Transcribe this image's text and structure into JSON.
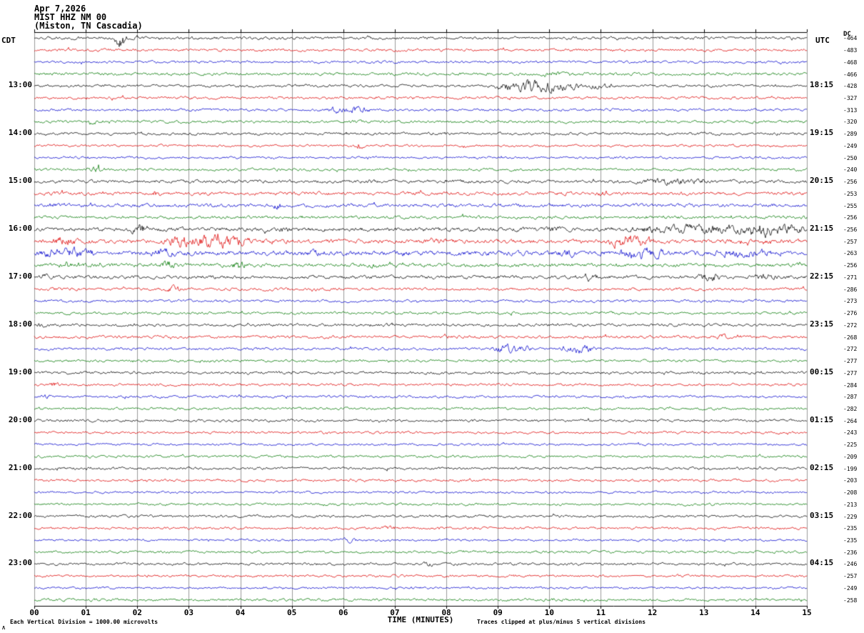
{
  "header": {
    "date": "Apr 7,2026",
    "station": "MIST HHZ NM 00",
    "location": "(Miston, TN Cascadia)"
  },
  "axes": {
    "left_tz": "CDT",
    "right_tz": "UTC",
    "dc_header": "DC",
    "xlabel": "TIME (MINUTES)",
    "x_ticks": [
      "00",
      "01",
      "02",
      "03",
      "04",
      "05",
      "06",
      "07",
      "08",
      "09",
      "10",
      "11",
      "12",
      "13",
      "14",
      "15"
    ]
  },
  "footer": {
    "left_note": "Each Vertical Division = 1000.00 microvolts",
    "right_note": "Traces clipped at plus/minus 5 vertical divisions",
    "corner_mark": "Λ"
  },
  "chart_data": {
    "type": "line",
    "subtype": "helicorder-seismogram",
    "title": "MIST HHZ NM 00 (Miston, TN Cascadia) Apr 7,2026",
    "xlabel": "TIME (MINUTES)",
    "x_range_minutes": [
      0,
      15
    ],
    "minutes_per_line": 15,
    "grid": true,
    "grid_color": "#9a9a9a",
    "trace_colors_cycle": [
      "#000000",
      "#dd0000",
      "#0000cc",
      "#007700"
    ],
    "note": "48 traces, 4 per hour, colors cycle black/red/blue/green; rows list CDT start label, UTC end label, DC offset (microvolts), base noise amplitude (px), and event bursts [start_min,end_min,amp_px]",
    "rows": [
      {
        "cdt": null,
        "utc": null,
        "dc": "-464",
        "amp": 2.4,
        "events": [
          [
            1.55,
            1.8,
            15
          ]
        ]
      },
      {
        "cdt": null,
        "utc": null,
        "dc": "-483",
        "amp": 2.2,
        "events": []
      },
      {
        "cdt": null,
        "utc": null,
        "dc": "-468",
        "amp": 2.1,
        "events": []
      },
      {
        "cdt": null,
        "utc": null,
        "dc": "-466",
        "amp": 2.4,
        "events": [
          [
            9.6,
            10.7,
            4
          ]
        ]
      },
      {
        "cdt": "13:00",
        "utc": "18:15",
        "dc": "-428",
        "amp": 2.2,
        "events": [
          [
            8.9,
            10.7,
            10
          ],
          [
            10.7,
            11.3,
            5
          ]
        ]
      },
      {
        "cdt": null,
        "utc": null,
        "dc": "-327",
        "amp": 2.1,
        "events": []
      },
      {
        "cdt": null,
        "utc": null,
        "dc": "-313",
        "amp": 2.1,
        "events": [
          [
            5.6,
            6.6,
            6
          ]
        ]
      },
      {
        "cdt": null,
        "utc": null,
        "dc": "-320",
        "amp": 2.3,
        "events": [
          [
            1.0,
            1.25,
            5
          ]
        ]
      },
      {
        "cdt": "14:00",
        "utc": "19:15",
        "dc": "-289",
        "amp": 2.2,
        "events": []
      },
      {
        "cdt": null,
        "utc": null,
        "dc": "-249",
        "amp": 2.0,
        "events": [
          [
            6.2,
            6.45,
            7
          ]
        ]
      },
      {
        "cdt": null,
        "utc": null,
        "dc": "-250",
        "amp": 1.9,
        "events": []
      },
      {
        "cdt": null,
        "utc": null,
        "dc": "-240",
        "amp": 2.1,
        "events": [
          [
            1.05,
            1.3,
            6
          ]
        ]
      },
      {
        "cdt": "15:00",
        "utc": "20:15",
        "dc": "-256",
        "amp": 2.7,
        "events": [
          [
            6.4,
            6.6,
            4
          ],
          [
            11.4,
            13.4,
            5
          ]
        ]
      },
      {
        "cdt": null,
        "utc": null,
        "dc": "-253",
        "amp": 2.8,
        "events": [
          [
            2.2,
            2.5,
            6
          ],
          [
            10.9,
            11.2,
            5
          ]
        ]
      },
      {
        "cdt": null,
        "utc": null,
        "dc": "-255",
        "amp": 2.8,
        "events": [
          [
            0.2,
            0.5,
            5
          ],
          [
            4.6,
            4.9,
            6
          ]
        ]
      },
      {
        "cdt": null,
        "utc": null,
        "dc": "-256",
        "amp": 2.5,
        "events": []
      },
      {
        "cdt": "16:00",
        "utc": "21:15",
        "dc": "-256",
        "amp": 3.2,
        "events": [
          [
            1.85,
            2.25,
            9
          ],
          [
            4.7,
            5.0,
            6
          ],
          [
            9.9,
            10.3,
            6
          ],
          [
            11.2,
            15,
            8
          ],
          [
            13.9,
            14.4,
            12
          ],
          [
            14.4,
            15,
            10
          ]
        ]
      },
      {
        "cdt": null,
        "utc": null,
        "dc": "-257",
        "amp": 3.4,
        "events": [
          [
            0.3,
            0.9,
            8
          ],
          [
            2.4,
            4.3,
            11
          ],
          [
            7.4,
            8.1,
            6
          ],
          [
            11.1,
            12.1,
            13
          ]
        ]
      },
      {
        "cdt": null,
        "utc": null,
        "dc": "-263",
        "amp": 3.8,
        "events": [
          [
            0,
            1.3,
            9
          ],
          [
            2.2,
            2.8,
            8
          ],
          [
            5.1,
            5.6,
            7
          ],
          [
            6.9,
            7.4,
            6
          ],
          [
            10.1,
            10.6,
            7
          ],
          [
            11.2,
            12.4,
            9
          ],
          [
            12.9,
            14.6,
            7
          ]
        ]
      },
      {
        "cdt": null,
        "utc": null,
        "dc": "-256",
        "amp": 3.0,
        "events": [
          [
            0.45,
            0.8,
            7
          ],
          [
            2.4,
            2.8,
            8
          ],
          [
            3.8,
            4.15,
            8
          ],
          [
            6.4,
            6.75,
            5
          ]
        ]
      },
      {
        "cdt": "17:00",
        "utc": "22:15",
        "dc": "-271",
        "amp": 2.8,
        "events": [
          [
            0.05,
            0.4,
            7
          ],
          [
            10.4,
            11.1,
            5
          ],
          [
            12.8,
            13.4,
            7
          ],
          [
            13.9,
            14.5,
            6
          ]
        ]
      },
      {
        "cdt": null,
        "utc": null,
        "dc": "-286",
        "amp": 2.3,
        "events": [
          [
            2.5,
            2.95,
            6
          ]
        ]
      },
      {
        "cdt": null,
        "utc": null,
        "dc": "-273",
        "amp": 2.2,
        "events": []
      },
      {
        "cdt": null,
        "utc": null,
        "dc": "-276",
        "amp": 2.2,
        "events": []
      },
      {
        "cdt": "18:00",
        "utc": "23:15",
        "dc": "-272",
        "amp": 2.3,
        "events": [
          [
            0,
            0.25,
            6
          ]
        ]
      },
      {
        "cdt": null,
        "utc": null,
        "dc": "-268",
        "amp": 2.3,
        "events": [
          [
            13.2,
            13.55,
            5
          ]
        ]
      },
      {
        "cdt": null,
        "utc": null,
        "dc": "-272",
        "amp": 2.2,
        "events": [
          [
            8.8,
            9.7,
            7
          ],
          [
            10.2,
            10.9,
            8
          ]
        ]
      },
      {
        "cdt": null,
        "utc": null,
        "dc": "-277",
        "amp": 2.1,
        "events": []
      },
      {
        "cdt": "19:00",
        "utc": "00:15",
        "dc": "-277",
        "amp": 2.3,
        "events": []
      },
      {
        "cdt": null,
        "utc": null,
        "dc": "-284",
        "amp": 2.1,
        "events": [
          [
            0.25,
            0.5,
            5
          ]
        ]
      },
      {
        "cdt": null,
        "utc": null,
        "dc": "-287",
        "amp": 2.0,
        "events": [
          [
            0.1,
            0.35,
            5
          ]
        ]
      },
      {
        "cdt": null,
        "utc": null,
        "dc": "-282",
        "amp": 2.0,
        "events": []
      },
      {
        "cdt": "20:00",
        "utc": "01:15",
        "dc": "-264",
        "amp": 2.1,
        "events": []
      },
      {
        "cdt": null,
        "utc": null,
        "dc": "-243",
        "amp": 2.0,
        "events": []
      },
      {
        "cdt": null,
        "utc": null,
        "dc": "-225",
        "amp": 1.8,
        "events": []
      },
      {
        "cdt": null,
        "utc": null,
        "dc": "-209",
        "amp": 2.0,
        "events": []
      },
      {
        "cdt": "21:00",
        "utc": "02:15",
        "dc": "-199",
        "amp": 2.1,
        "events": []
      },
      {
        "cdt": null,
        "utc": null,
        "dc": "-203",
        "amp": 2.0,
        "events": []
      },
      {
        "cdt": null,
        "utc": null,
        "dc": "-208",
        "amp": 1.8,
        "events": []
      },
      {
        "cdt": null,
        "utc": null,
        "dc": "-213",
        "amp": 2.0,
        "events": []
      },
      {
        "cdt": "22:00",
        "utc": "03:15",
        "dc": "-229",
        "amp": 2.1,
        "events": []
      },
      {
        "cdt": null,
        "utc": null,
        "dc": "-235",
        "amp": 2.0,
        "events": [
          [
            6.7,
            7.1,
            4
          ]
        ]
      },
      {
        "cdt": null,
        "utc": null,
        "dc": "-235",
        "amp": 1.8,
        "events": [
          [
            5.9,
            6.3,
            4
          ]
        ]
      },
      {
        "cdt": null,
        "utc": null,
        "dc": "-236",
        "amp": 2.0,
        "events": []
      },
      {
        "cdt": "23:00",
        "utc": "04:15",
        "dc": "-246",
        "amp": 2.1,
        "events": [
          [
            7.5,
            7.8,
            4
          ]
        ]
      },
      {
        "cdt": null,
        "utc": null,
        "dc": "-257",
        "amp": 2.0,
        "events": []
      },
      {
        "cdt": null,
        "utc": null,
        "dc": "-249",
        "amp": 1.8,
        "events": []
      },
      {
        "cdt": null,
        "utc": null,
        "dc": "-258",
        "amp": 2.2,
        "events": []
      }
    ]
  }
}
